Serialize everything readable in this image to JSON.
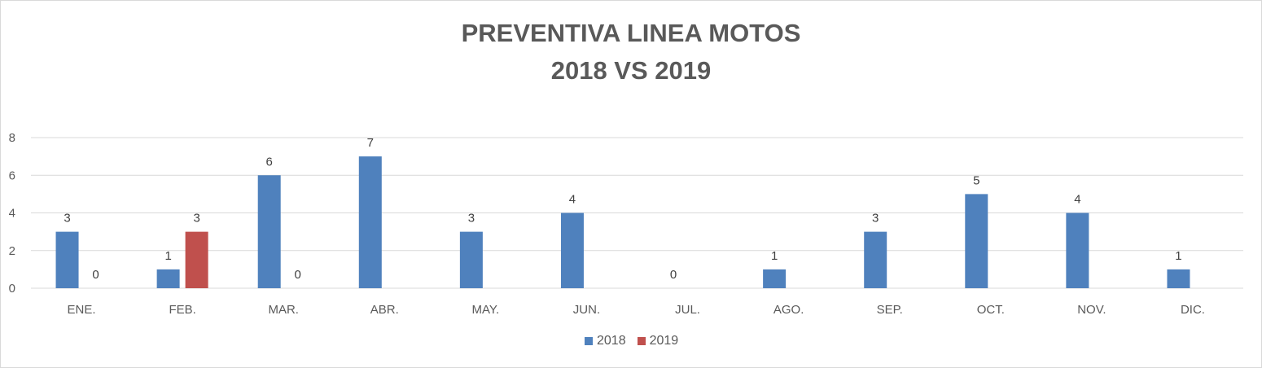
{
  "chart_data": {
    "type": "bar",
    "title": [
      "PREVENTIVA LINEA MOTOS",
      "2018 VS 2019"
    ],
    "categories": [
      "ENE.",
      "FEB.",
      "MAR.",
      "ABR.",
      "MAY.",
      "JUN.",
      "JUL.",
      "AGO.",
      "SEP.",
      "OCT.",
      "NOV.",
      "DIC."
    ],
    "series": [
      {
        "name": "2018",
        "color": "#4f81bd",
        "values": [
          3,
          1,
          6,
          7,
          3,
          4,
          0,
          1,
          3,
          5,
          4,
          1
        ]
      },
      {
        "name": "2019",
        "color": "#c0504d",
        "values": [
          0,
          3,
          0,
          null,
          null,
          null,
          null,
          null,
          null,
          null,
          null,
          null
        ]
      }
    ],
    "ylim": [
      0,
      8
    ],
    "yticks": [
      0,
      2,
      4,
      6,
      8
    ],
    "grid": true,
    "legend": "bottom",
    "data_labels": true
  }
}
